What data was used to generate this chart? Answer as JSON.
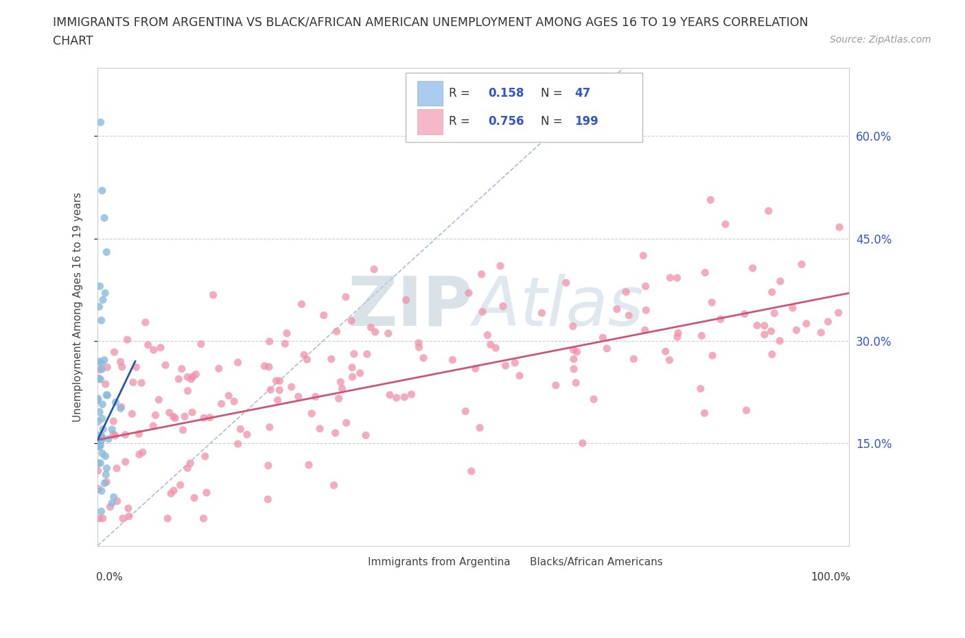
{
  "title_line1": "IMMIGRANTS FROM ARGENTINA VS BLACK/AFRICAN AMERICAN UNEMPLOYMENT AMONG AGES 16 TO 19 YEARS CORRELATION",
  "title_line2": "CHART",
  "source": "Source: ZipAtlas.com",
  "ylabel": "Unemployment Among Ages 16 to 19 years",
  "ytick_labels": [
    "15.0%",
    "30.0%",
    "45.0%",
    "60.0%"
  ],
  "ytick_values": [
    0.15,
    0.3,
    0.45,
    0.6
  ],
  "R_color": "#3355cc",
  "watermark": "ZIPAtlas",
  "watermark_color": "#c8d8e8",
  "argentina_scatter_color": "#88bbdd",
  "blacks_scatter_color": "#f090a8",
  "argentina_trend_color": "#2255aa",
  "blacks_trend_color": "#cc5577",
  "diagonal_color": "#aabbdd",
  "argentina_legend_color": "#aaccee",
  "blacks_legend_color": "#f4b8c8",
  "xmin": 0.0,
  "xmax": 1.0,
  "ymin": 0.0,
  "ymax": 0.7
}
